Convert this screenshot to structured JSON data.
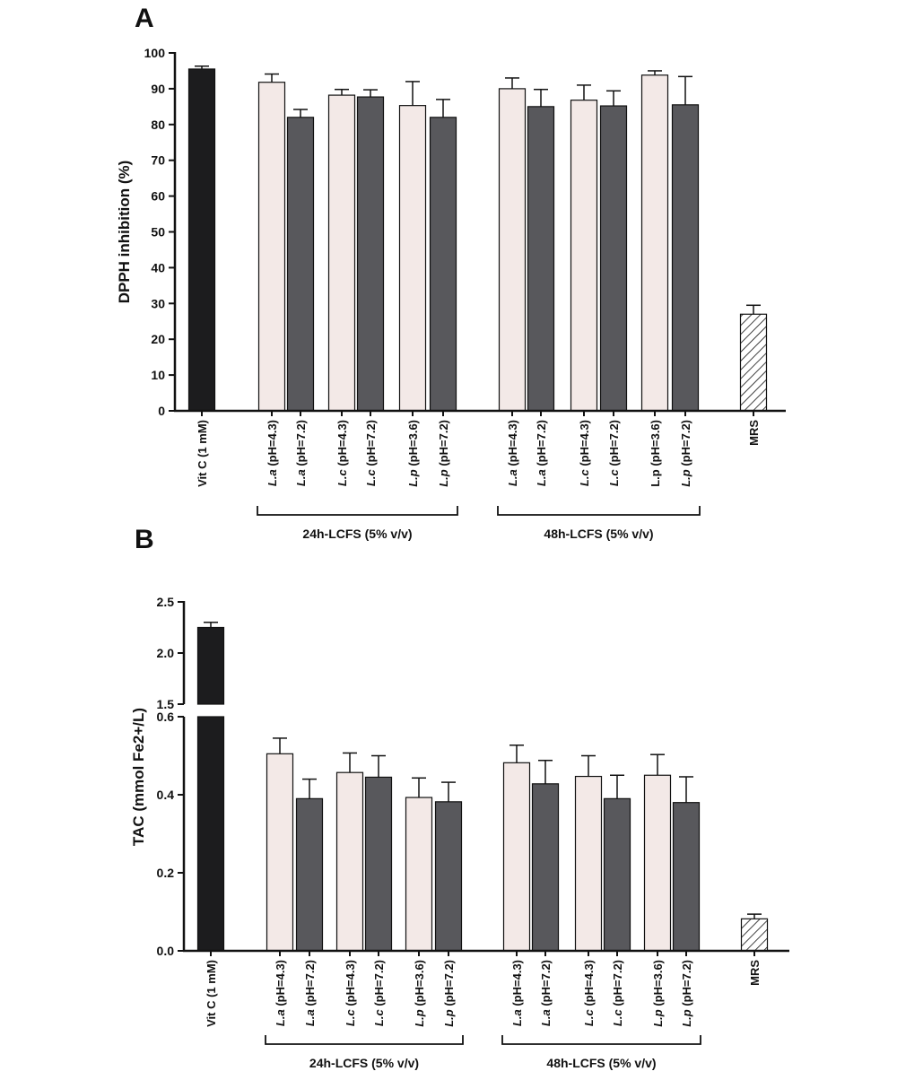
{
  "chart_data": [
    {
      "type": "bar",
      "panel_label": "A",
      "ylabel": "DPPH inhibition (%)",
      "ylim": [
        0,
        100
      ],
      "yticks": [
        0,
        10,
        20,
        30,
        40,
        50,
        60,
        70,
        80,
        90,
        100
      ],
      "grid": false,
      "categories": [
        {
          "italic": "",
          "text": "Vit C (1 mM)"
        },
        {
          "italic": "L.a",
          "text": " (pH=4.3)"
        },
        {
          "italic": "L.a",
          "text": " (pH=7.2)"
        },
        {
          "italic": "L.c",
          "text": " (pH=4.3)"
        },
        {
          "italic": "L.c",
          "text": " (pH=7.2)"
        },
        {
          "italic": "L.p",
          "text": " (pH=3.6)"
        },
        {
          "italic": "L.p",
          "text": " (pH=7.2)"
        },
        {
          "italic": "L.a",
          "text": " (pH=4.3)"
        },
        {
          "italic": "L.a",
          "text": " (pH=7.2)"
        },
        {
          "italic": "L.c",
          "text": " (pH=4.3)"
        },
        {
          "italic": "L.c",
          "text": " (pH=7.2)"
        },
        {
          "italic": "",
          "text": "L.p (pH=3.6)"
        },
        {
          "italic": "L.p",
          "text": " (pH=7.2)"
        },
        {
          "italic": "",
          "text": "MRS"
        }
      ],
      "values": [
        95.5,
        91.8,
        82.0,
        88.2,
        87.7,
        85.3,
        82.0,
        90.0,
        85.0,
        86.8,
        85.2,
        93.8,
        85.5,
        27.0
      ],
      "errors": [
        0.8,
        2.3,
        2.2,
        1.6,
        2.0,
        6.7,
        5.0,
        3.0,
        4.8,
        4.2,
        4.2,
        1.2,
        7.9,
        2.5
      ],
      "styles": [
        "black",
        "light",
        "dark",
        "light",
        "dark",
        "light",
        "dark",
        "light",
        "dark",
        "light",
        "dark",
        "light",
        "dark",
        "hatched"
      ],
      "groups": [
        {
          "label": "24h-LCFS (5% v/v)",
          "from": 1,
          "to": 6
        },
        {
          "label": "48h-LCFS (5% v/v)",
          "from": 7,
          "to": 12
        }
      ]
    },
    {
      "type": "bar",
      "panel_label": "B",
      "ylabel": "TAC (mmol Fe2+/L)",
      "y_axis_break": {
        "lower": [
          0.0,
          0.6
        ],
        "upper": [
          1.5,
          2.5
        ]
      },
      "yticks_lower": [
        "0.0",
        "0.2",
        "0.4",
        "0.6"
      ],
      "yticks_upper": [
        "1.5",
        "2.0",
        "2.5"
      ],
      "grid": false,
      "categories": [
        {
          "italic": "",
          "text": "Vit C (1 mM)"
        },
        {
          "italic": "L.a",
          "text": " (pH=4.3)"
        },
        {
          "italic": "L.a",
          "text": " (pH=7.2)"
        },
        {
          "italic": "L.c",
          "text": " (pH=4.3)"
        },
        {
          "italic": "L.c",
          "text": " (pH=7.2)"
        },
        {
          "italic": "L.p",
          "text": " (pH=3.6)"
        },
        {
          "italic": "L.p",
          "text": " (pH=7.2)"
        },
        {
          "italic": "L.a",
          "text": " (pH=4.3)"
        },
        {
          "italic": "L.a",
          "text": " (pH=7.2)"
        },
        {
          "italic": "L.c",
          "text": " (pH=4.3)"
        },
        {
          "italic": "L.c",
          "text": " (pH=7.2)"
        },
        {
          "italic": "L.p",
          "text": " (pH=3.6)"
        },
        {
          "italic": "L.p",
          "text": " (pH=7.2)"
        },
        {
          "italic": "",
          "text": "MRS"
        }
      ],
      "values": [
        2.25,
        0.505,
        0.39,
        0.457,
        0.445,
        0.393,
        0.382,
        0.482,
        0.428,
        0.447,
        0.39,
        0.45,
        0.38,
        0.082
      ],
      "errors": [
        0.05,
        0.04,
        0.05,
        0.05,
        0.055,
        0.05,
        0.05,
        0.045,
        0.06,
        0.053,
        0.06,
        0.053,
        0.066,
        0.012
      ],
      "styles": [
        "black",
        "light",
        "dark",
        "light",
        "dark",
        "light",
        "dark",
        "light",
        "dark",
        "light",
        "dark",
        "light",
        "dark",
        "hatched"
      ],
      "groups": [
        {
          "label": "24h-LCFS (5% v/v)",
          "from": 1,
          "to": 6
        },
        {
          "label": "48h-LCFS (5% v/v)",
          "from": 7,
          "to": 12
        }
      ]
    }
  ],
  "colors": {
    "black_bar": "#1c1c1e",
    "light_bar": "#f3e9e7",
    "dark_bar": "#58585c",
    "hatch_fill": "#ffffff",
    "axis": "#111111"
  }
}
